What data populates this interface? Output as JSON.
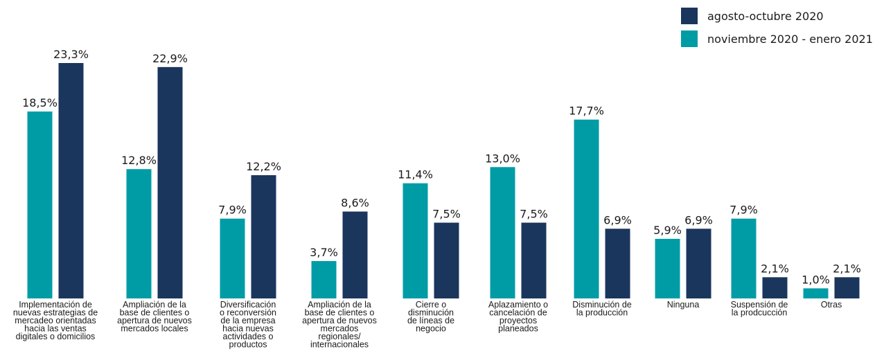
{
  "chart_data": {
    "type": "bar",
    "categories": [
      [
        "Implementación de",
        "nuevas estrategias de",
        "mercadeo orientadas",
        "hacia las ventas",
        "digitales o domicilios"
      ],
      [
        "Ampliación de la",
        "base de clientes o",
        "apertura de nuevos",
        "mercados locales"
      ],
      [
        "Diversificación",
        "o reconversión",
        "de la empresa",
        "hacia nuevas",
        "actividades o",
        "productos"
      ],
      [
        "Ampliación de la",
        "base de clientes o",
        "apertura de nuevos",
        "mercados",
        "regionales/",
        "internacionales"
      ],
      [
        "Cierre o",
        "disminución",
        "de líneas de",
        "negocio"
      ],
      [
        "Aplazamiento o",
        "cancelación de",
        "proyectos",
        "planeados"
      ],
      [
        "Disminución de",
        "la producción"
      ],
      [
        "Ninguna"
      ],
      [
        "Suspensión de",
        "la prodcucción"
      ],
      [
        "Otras"
      ]
    ],
    "series": [
      {
        "name": "noviembre 2020 - enero 2021",
        "color": "#009ca6",
        "values": [
          18.5,
          12.8,
          7.9,
          3.7,
          11.4,
          13.0,
          17.7,
          5.9,
          7.9,
          1.0
        ],
        "labels": [
          "18,5%",
          "12,8%",
          "7,9%",
          "3,7%",
          "11,4%",
          "13,0%",
          "17,7%",
          "5,9%",
          "7,9%",
          "1,0%"
        ]
      },
      {
        "name": "agosto-octubre 2020",
        "color": "#1b365d",
        "values": [
          23.3,
          22.9,
          12.2,
          8.6,
          7.5,
          7.5,
          6.9,
          6.9,
          2.1,
          2.1
        ],
        "labels": [
          "23,3%",
          "22,9%",
          "12,2%",
          "8,6%",
          "7,5%",
          "7,5%",
          "6,9%",
          "6,9%",
          "2,1%",
          "2,1%"
        ]
      }
    ],
    "legend_order": [
      1,
      0
    ],
    "legend_position": "top-right",
    "ylim": [
      0,
      25
    ],
    "grid": false
  }
}
